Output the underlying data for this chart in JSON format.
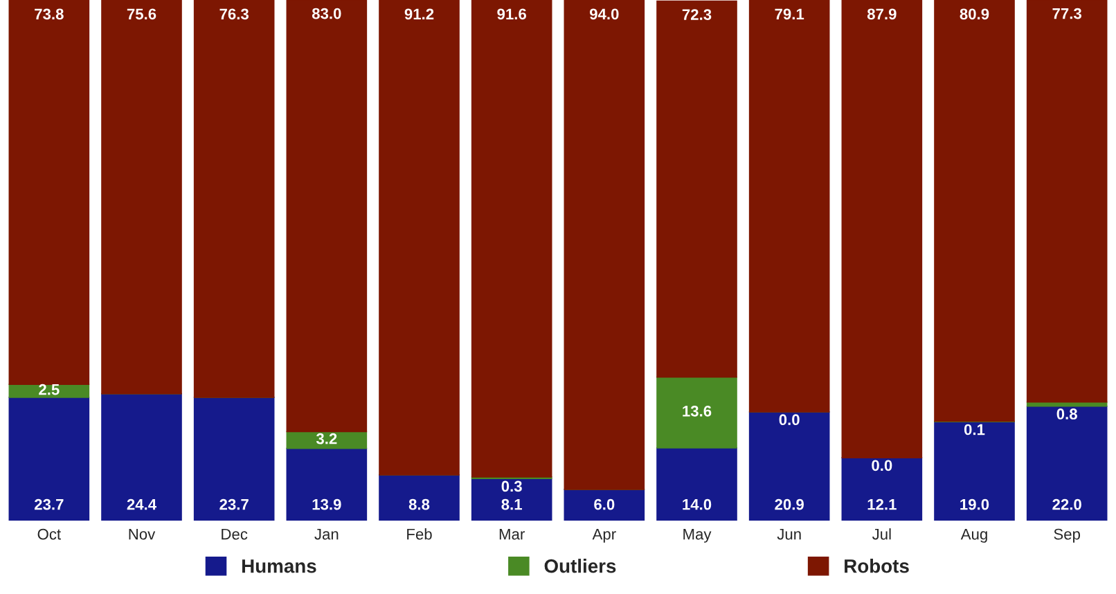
{
  "chart_data": {
    "type": "bar",
    "stacked": true,
    "relative": false,
    "categories": [
      "Oct",
      "Nov",
      "Dec",
      "Jan",
      "Feb",
      "Mar",
      "Apr",
      "May",
      "Jun",
      "Jul",
      "Aug",
      "Sep"
    ],
    "series": [
      {
        "name": "Humans",
        "color": "#151a8c",
        "values": [
          23.7,
          24.4,
          23.7,
          13.9,
          8.8,
          8.1,
          6.0,
          14.0,
          20.9,
          12.1,
          19.0,
          22.0
        ],
        "value_labels": [
          "23.7",
          "24.4",
          "23.7",
          "13.9",
          "8.8",
          "8.1",
          "6.0",
          "14.0",
          "20.9",
          "12.1",
          "19.0",
          "22.0"
        ]
      },
      {
        "name": "Outliers",
        "color": "#4a8a25",
        "values": [
          2.5,
          0,
          0,
          3.2,
          0,
          0.3,
          0,
          13.6,
          0.0,
          0.0,
          0.1,
          0.8
        ],
        "value_labels": [
          "2.5",
          null,
          null,
          "3.2",
          null,
          "0.3",
          null,
          "13.6",
          "0.0",
          "0.0",
          "0.1",
          "0.8"
        ]
      },
      {
        "name": "Robots",
        "color": "#7d1702",
        "values": [
          73.8,
          75.6,
          76.3,
          83.0,
          91.2,
          91.6,
          94.0,
          72.3,
          79.1,
          87.9,
          80.9,
          77.3
        ],
        "value_labels": [
          "73.8",
          "75.6",
          "76.3",
          "83.0",
          "91.2",
          "91.6",
          "94.0",
          "72.3",
          "79.1",
          "87.9",
          "80.9",
          "77.3"
        ]
      }
    ],
    "legend": "bottom",
    "grid": false
  }
}
